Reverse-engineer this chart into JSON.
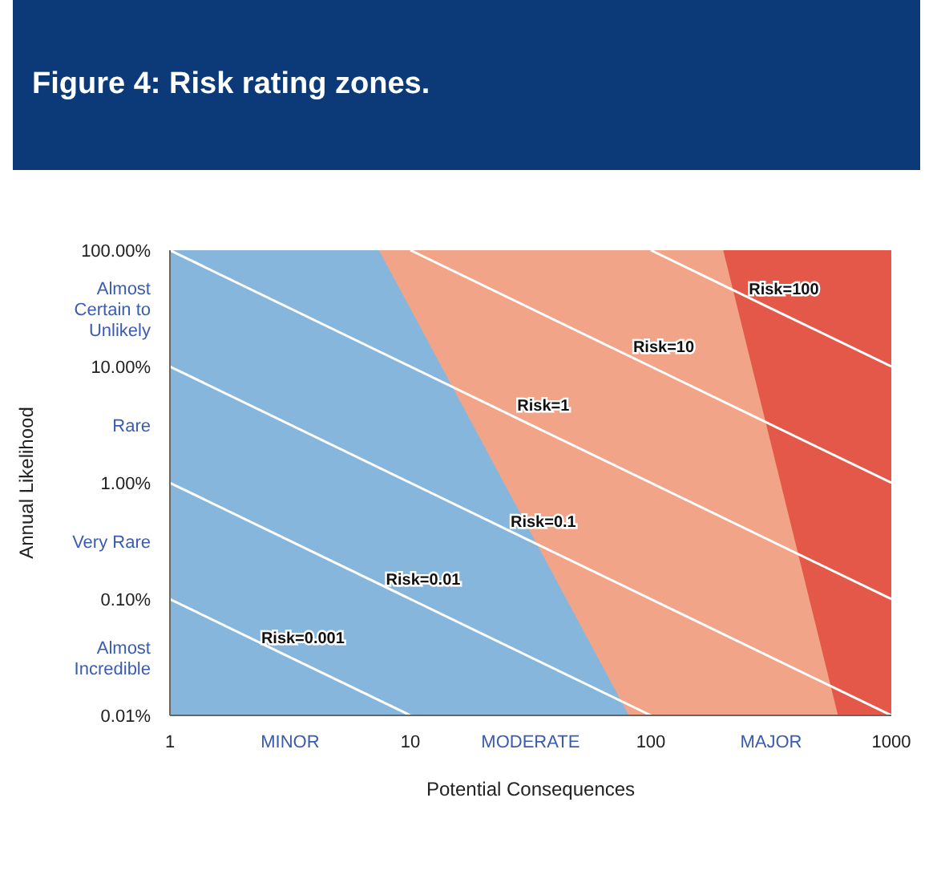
{
  "chart_data": {
    "type": "line",
    "title": "Figure 4: Risk rating zones.",
    "xlabel": "Potential Consequences",
    "ylabel": "Annual Likelihood",
    "log": "xy",
    "legend": false,
    "xlim": [
      1,
      1000
    ],
    "xticks": [
      1,
      {
        "value": 3.16,
        "label": "MINOR"
      },
      10,
      {
        "value": 31.6,
        "label": "MODERATE"
      },
      100,
      {
        "value": 316,
        "label": "MAJOR"
      },
      1000
    ],
    "ylim": [
      0.01,
      100
    ],
    "yticks": [
      {
        "value": 0.01,
        "label": "0.01%"
      },
      {
        "value": 0.0316,
        "label": "Almost Incredible"
      },
      {
        "value": 0.1,
        "label": "0.10%"
      },
      {
        "value": 0.316,
        "label": "Very Rare"
      },
      {
        "value": 1,
        "label": "1.00%"
      },
      {
        "value": 3.16,
        "label": "Rare"
      },
      {
        "value": 10,
        "label": "10.00%"
      },
      {
        "value": 31.6,
        "label": "Almost Certain to Unlikely"
      },
      {
        "value": 100,
        "label": "100.00%"
      }
    ],
    "series": [
      {
        "type": "area",
        "color": "#e4584a",
        "x": [
          1,
          1000
        ],
        "values": [
          100,
          100
        ]
      },
      {
        "type": "area",
        "color": "#f2a488",
        "x": [
          1,
          200,
          600
        ],
        "values": [
          100,
          100,
          0.01
        ]
      },
      {
        "type": "area",
        "color": "#86b6dc",
        "x": [
          1,
          7.4,
          81
        ],
        "values": [
          100,
          100,
          0.01
        ]
      },
      {
        "name": "Risk=0.001",
        "color": "#ffffff",
        "x": [
          1,
          3.16,
          10
        ],
        "values": [
          0.1,
          0.0316,
          0.01
        ]
      },
      {
        "name": "Risk=0.01",
        "color": "#ffffff",
        "x": [
          1,
          10,
          100
        ],
        "values": [
          1,
          0.1,
          0.01
        ]
      },
      {
        "name": "Risk=0.1",
        "color": "#ffffff",
        "x": [
          1,
          31.6,
          1000
        ],
        "values": [
          10,
          0.316,
          0.01
        ]
      },
      {
        "name": "Risk=1",
        "color": "#ffffff",
        "x": [
          1,
          31.6,
          1000
        ],
        "values": [
          100,
          3.16,
          0.1
        ]
      },
      {
        "name": "Risk=10",
        "color": "#ffffff",
        "x": [
          10,
          100,
          1000
        ],
        "values": [
          100,
          10,
          1
        ]
      },
      {
        "name": "Risk=100",
        "color": "#ffffff",
        "x": [
          100,
          316,
          1000
        ],
        "values": [
          100,
          31.6,
          10
        ]
      }
    ]
  }
}
